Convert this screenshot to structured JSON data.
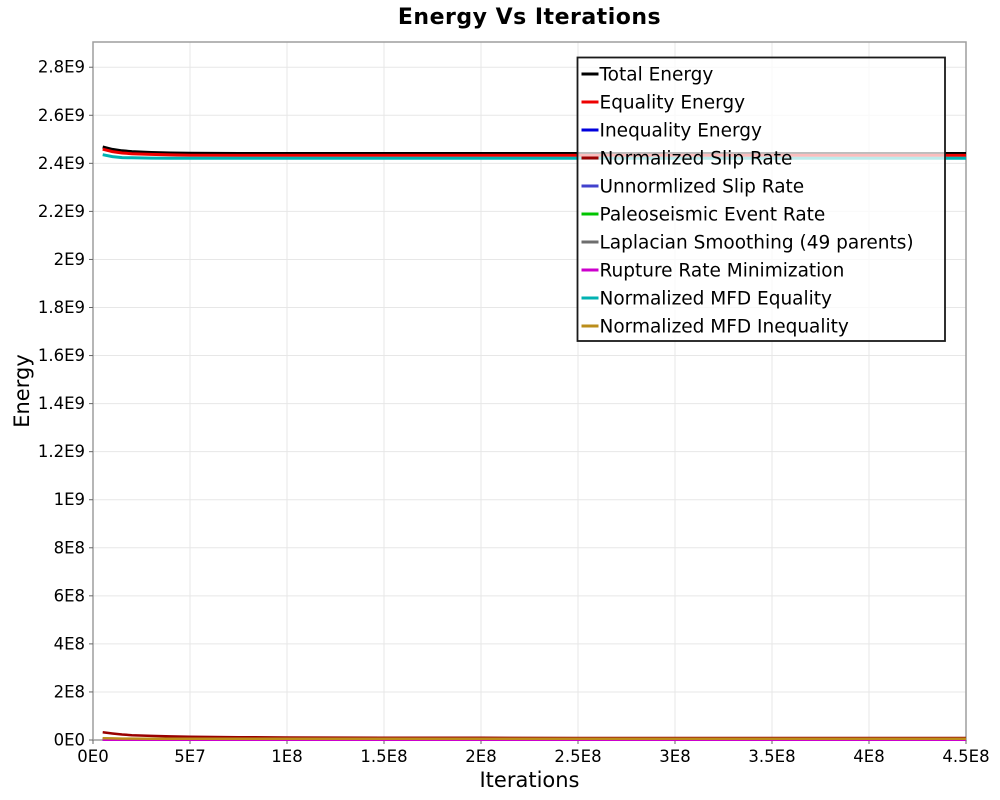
{
  "chart_data": {
    "type": "line",
    "title": "Energy Vs Iterations",
    "xlabel": "Iterations",
    "ylabel": "Energy",
    "xlim": [
      0,
      450000000.0
    ],
    "ylim": [
      0,
      2905000000.0
    ],
    "grid": true,
    "legend_position": "inside-top-right",
    "colors": {
      "grid": "#e7e7e7",
      "plot_border": "#9e9e9e",
      "tick": "#666666",
      "text": "#000000",
      "legend_border": "#1a1a1a",
      "legend_fill": "rgba(255,255,255,0.74)"
    },
    "x_ticks": [
      {
        "value": 0,
        "label": "0E0"
      },
      {
        "value": 50000000.0,
        "label": "5E7"
      },
      {
        "value": 100000000.0,
        "label": "1E8"
      },
      {
        "value": 150000000.0,
        "label": "1.5E8"
      },
      {
        "value": 200000000.0,
        "label": "2E8"
      },
      {
        "value": 250000000.0,
        "label": "2.5E8"
      },
      {
        "value": 300000000.0,
        "label": "3E8"
      },
      {
        "value": 350000000.0,
        "label": "3.5E8"
      },
      {
        "value": 400000000.0,
        "label": "4E8"
      },
      {
        "value": 450000000.0,
        "label": "4.5E8"
      }
    ],
    "y_ticks": [
      {
        "value": 0,
        "label": "0E0"
      },
      {
        "value": 200000000.0,
        "label": "2E8"
      },
      {
        "value": 400000000.0,
        "label": "4E8"
      },
      {
        "value": 600000000.0,
        "label": "6E8"
      },
      {
        "value": 800000000.0,
        "label": "8E8"
      },
      {
        "value": 1000000000.0,
        "label": "1E9"
      },
      {
        "value": 1200000000.0,
        "label": "1.2E9"
      },
      {
        "value": 1400000000.0,
        "label": "1.4E9"
      },
      {
        "value": 1600000000.0,
        "label": "1.6E9"
      },
      {
        "value": 1800000000.0,
        "label": "1.8E9"
      },
      {
        "value": 2000000000.0,
        "label": "2E9"
      },
      {
        "value": 2200000000.0,
        "label": "2.2E9"
      },
      {
        "value": 2400000000.0,
        "label": "2.4E9"
      },
      {
        "value": 2600000000.0,
        "label": "2.6E9"
      },
      {
        "value": 2800000000.0,
        "label": "2.8E9"
      }
    ],
    "x": [
      5000000.0,
      10000000.0,
      15000000.0,
      20000000.0,
      30000000.0,
      40000000.0,
      50000000.0,
      75000000.0,
      100000000.0,
      150000000.0,
      200000000.0,
      250000000.0,
      300000000.0,
      350000000.0,
      400000000.0,
      450000000.0
    ],
    "series": [
      {
        "name": "Total Energy",
        "color": "#000000",
        "width": 3,
        "values": [
          2468000000.0,
          2458000000.0,
          2452000000.0,
          2449000000.0,
          2445000000.0,
          2443000000.0,
          2442000000.0,
          2441000000.0,
          2441000000.0,
          2441000000.0,
          2441000000.0,
          2441000000.0,
          2441000000.0,
          2441000000.0,
          2441000000.0,
          2441000000.0
        ]
      },
      {
        "name": "Equality Energy",
        "color": "#ee0000",
        "width": 3,
        "values": [
          2459000000.0,
          2449000000.0,
          2443000000.0,
          2440000000.0,
          2437000000.0,
          2435000000.0,
          2434000000.0,
          2433000000.0,
          2433000000.0,
          2433000000.0,
          2433000000.0,
          2433000000.0,
          2433000000.0,
          2433000000.0,
          2433000000.0,
          2433000000.0
        ]
      },
      {
        "name": "Inequality Energy",
        "color": "#0000dd",
        "width": 2.5,
        "values": [
          1500000.0,
          1500000.0,
          1500000.0,
          1500000.0,
          1500000.0,
          1500000.0,
          1500000.0,
          1500000.0,
          1500000.0,
          1500000.0,
          1500000.0,
          1500000.0,
          1500000.0,
          1500000.0,
          1500000.0,
          1500000.0
        ]
      },
      {
        "name": "Normalized Slip Rate",
        "color": "#990000",
        "width": 2.5,
        "values": [
          32000000.0,
          27000000.0,
          23000000.0,
          20000000.0,
          17000000.0,
          15000000.0,
          13500000.0,
          11500000.0,
          10500000.0,
          9500000.0,
          9000000.0,
          8500000.0,
          8500000.0,
          8500000.0,
          8500000.0,
          8500000.0
        ]
      },
      {
        "name": "Unnormlized Slip Rate",
        "color": "#4242cd",
        "width": 2,
        "values": [
          2000000.0,
          2000000.0,
          2000000.0,
          2000000.0,
          2000000.0,
          2000000.0,
          2000000.0,
          2000000.0,
          2000000.0,
          2000000.0,
          2000000.0,
          2000000.0,
          2000000.0,
          2000000.0,
          2000000.0,
          2000000.0
        ]
      },
      {
        "name": "Paleoseismic Event Rate",
        "color": "#00c400",
        "width": 2.5,
        "values": [
          3000000.0,
          2800000.0,
          2600000.0,
          2500000.0,
          2500000.0,
          2500000.0,
          2500000.0,
          2500000.0,
          2500000.0,
          2500000.0,
          2500000.0,
          2500000.0,
          2500000.0,
          2500000.0,
          2500000.0,
          2500000.0
        ]
      },
      {
        "name": "Laplacian Smoothing (49 parents)",
        "color": "#6e6e6e",
        "width": 2.5,
        "values": [
          5000000.0,
          4500000.0,
          4000000.0,
          4000000.0,
          3500000.0,
          3500000.0,
          3000000.0,
          3000000.0,
          3000000.0,
          3000000.0,
          3000000.0,
          3000000.0,
          3000000.0,
          3000000.0,
          3000000.0,
          3000000.0
        ]
      },
      {
        "name": "Rupture Rate Minimization",
        "color": "#cc00cc",
        "width": 2.5,
        "values": [
          1000000.0,
          1000000.0,
          1000000.0,
          1000000.0,
          1000000.0,
          1000000.0,
          1000000.0,
          1000000.0,
          1000000.0,
          1000000.0,
          1000000.0,
          1000000.0,
          1000000.0,
          1000000.0,
          1000000.0,
          1000000.0
        ]
      },
      {
        "name": "Normalized MFD Equality",
        "color": "#00b2b2",
        "width": 3,
        "values": [
          2436000000.0,
          2428000000.0,
          2424000000.0,
          2423000000.0,
          2422000000.0,
          2421000000.0,
          2421000000.0,
          2421000000.0,
          2421000000.0,
          2421000000.0,
          2421000000.0,
          2421000000.0,
          2421000000.0,
          2421000000.0,
          2421000000.0,
          2421000000.0
        ]
      },
      {
        "name": "Normalized MFD Inequality",
        "color": "#bb8e1b",
        "width": 2.5,
        "values": [
          7000000.0,
          6500000.0,
          6000000.0,
          6000000.0,
          5500000.0,
          5500000.0,
          5000000.0,
          5000000.0,
          5000000.0,
          5000000.0,
          5000000.0,
          5000000.0,
          5000000.0,
          5000000.0,
          5000000.0,
          5000000.0
        ]
      }
    ]
  }
}
